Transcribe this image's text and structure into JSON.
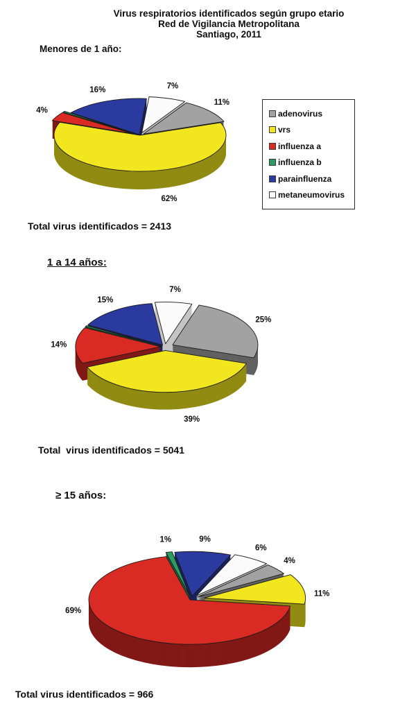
{
  "page": {
    "title_lines": [
      "Virus respiratorios identificados según grupo etario",
      "Red de Vigilancia Metropolitana",
      "Santiago, 2011"
    ],
    "background": "#ffffff"
  },
  "legend": {
    "items": [
      {
        "label": "adenovirus",
        "color": "#A2A2A2"
      },
      {
        "label": "vrs",
        "color": "#F2E71E"
      },
      {
        "label": "influenza a",
        "color": "#D92A24"
      },
      {
        "label": "influenza b",
        "color": "#2E9C62"
      },
      {
        "label": "parainfluenza",
        "color": "#2A3A9E"
      },
      {
        "label": "metaneumovirus",
        "color": "#FBFBFB"
      }
    ]
  },
  "chart_data": [
    {
      "type": "pie",
      "pie_style": "3d-exploded",
      "title": "Menores de 1 año:",
      "categories": [
        "adenovirus",
        "vrs",
        "influenza a",
        "influenza b",
        "parainfluenza",
        "metaneumovirus"
      ],
      "values": [
        11,
        62,
        4,
        0,
        16,
        7
      ],
      "labels": [
        "11%",
        "62%",
        "4%",
        "",
        "16%",
        "7%"
      ],
      "colors": [
        "#A2A2A2",
        "#F2E71E",
        "#D92A24",
        "#2E9C62",
        "#2A3A9E",
        "#FBFBFB"
      ],
      "start_angle": 30,
      "explode": [
        0.05,
        0,
        0.1,
        0.1,
        0.02,
        0.07
      ],
      "legend_position": "right",
      "total_label": "Total virus identificados = 2413",
      "total": 2413
    },
    {
      "type": "pie",
      "pie_style": "3d-exploded",
      "title": "1 a 14 años:",
      "categories": [
        "adenovirus",
        "vrs",
        "influenza a",
        "influenza b",
        "parainfluenza",
        "metaneumovirus"
      ],
      "values": [
        25,
        39,
        14,
        0,
        15,
        7
      ],
      "labels": [
        "25%",
        "39%",
        "14%",
        "",
        "15%",
        "7%"
      ],
      "colors": [
        "#A2A2A2",
        "#F2E71E",
        "#D92A24",
        "#2E9C62",
        "#2A3A9E",
        "#FBFBFB"
      ],
      "start_angle": 18,
      "explode": [
        0.1,
        0.09,
        0.05,
        0.05,
        0.05,
        0.07
      ],
      "legend_position": "none",
      "total_label": "Total  virus identificados = 5041",
      "total": 5041
    },
    {
      "type": "pie",
      "pie_style": "3d-exploded",
      "title": "≥ 15 años:",
      "categories": [
        "adenovirus",
        "vrs",
        "influenza a",
        "influenza b",
        "parainfluenza",
        "metaneumovirus"
      ],
      "values": [
        4,
        11,
        69,
        1,
        9,
        6
      ],
      "labels": [
        "4%",
        "11%",
        "69%",
        "1%",
        "9%",
        "6%"
      ],
      "colors": [
        "#A2A2A2",
        "#F2E71E",
        "#D92A24",
        "#2E9C62",
        "#2A3A9E",
        "#FBFBFB"
      ],
      "start_angle": 44,
      "explode": [
        0.08,
        0.13,
        0.02,
        0.08,
        0.07,
        0.09
      ],
      "legend_position": "none",
      "total_label": "Total virus identificados = 966",
      "total": 966
    }
  ]
}
